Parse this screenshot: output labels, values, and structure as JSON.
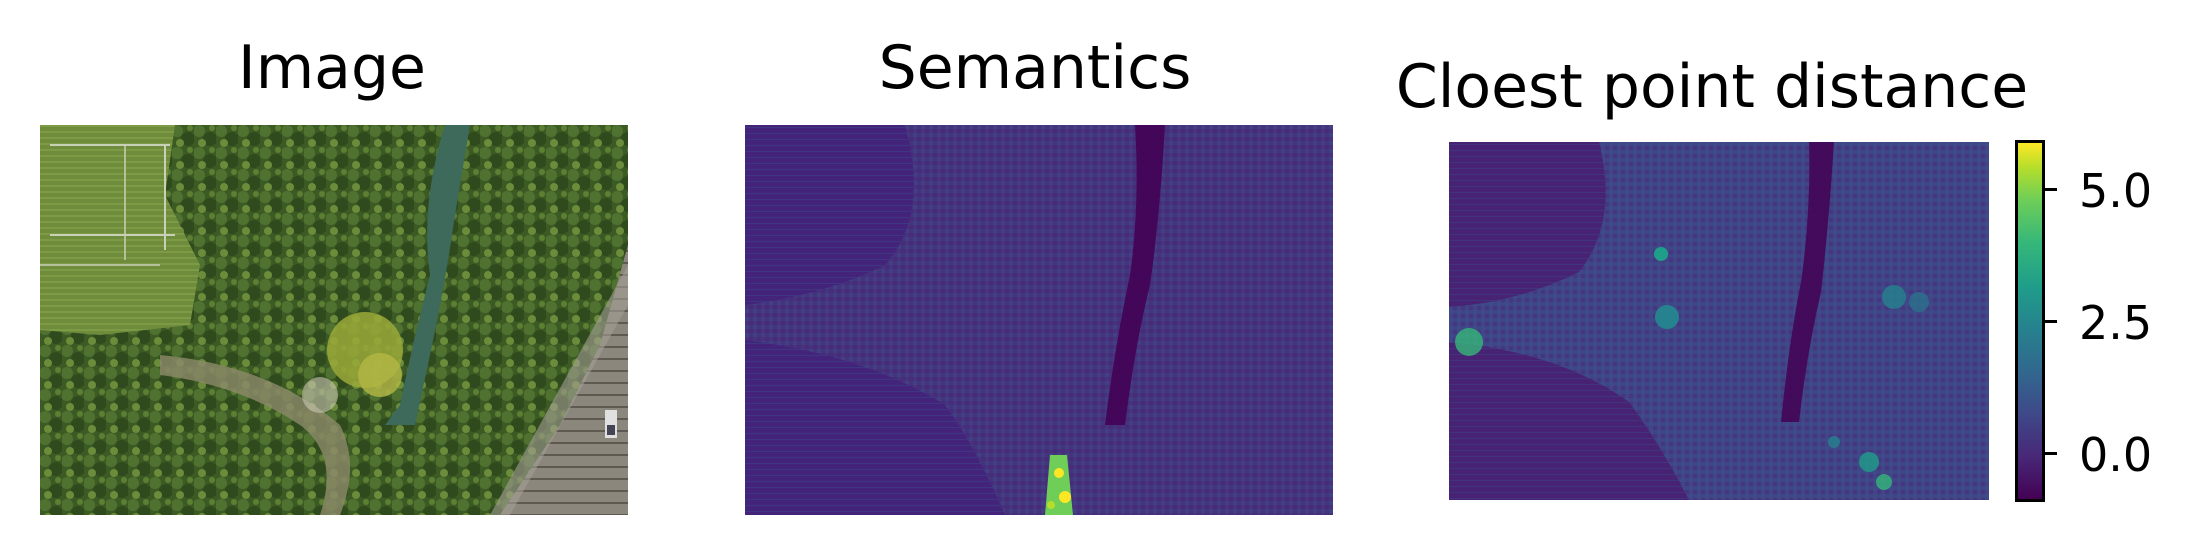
{
  "panels": {
    "image": {
      "title": "Image"
    },
    "semantics": {
      "title": "Semantics"
    },
    "distance": {
      "title": "Cloest point distance"
    }
  },
  "colorbar": {
    "colormap": "viridis",
    "ticks": [
      "5.0",
      "2.5",
      "0.0"
    ],
    "colors": {
      "low": "#440154",
      "mid": "#21918c",
      "high": "#fde725"
    }
  }
}
